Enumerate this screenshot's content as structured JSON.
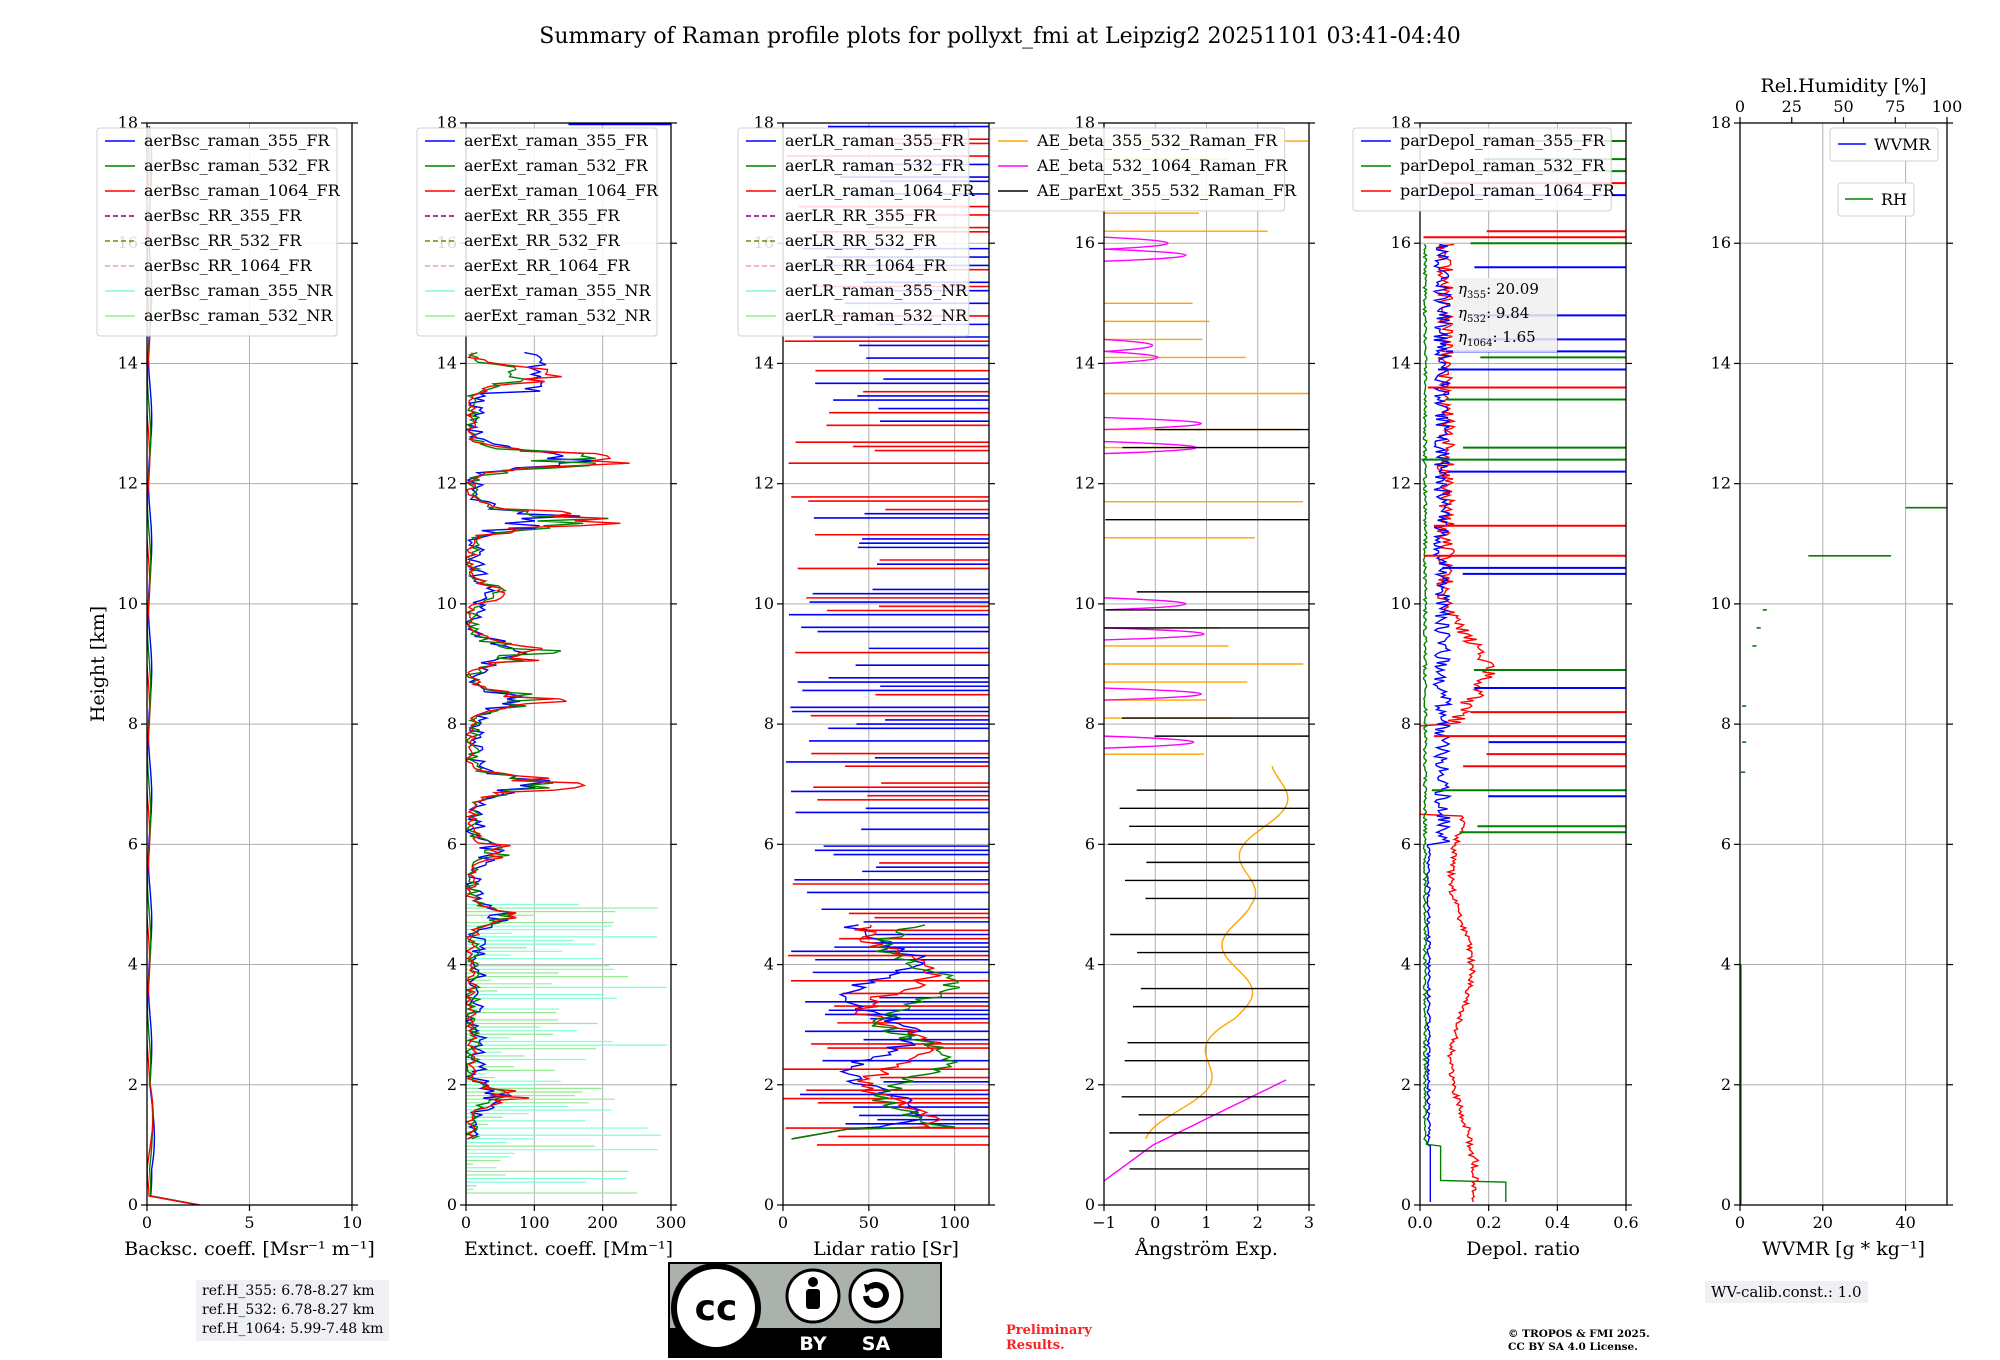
{
  "title": "Summary of Raman profile plots for pollyxt_fmi at Leipzig2 20251101 03:41-04:40",
  "colors": {
    "blue": "#0000ff",
    "green": "#008000",
    "red": "#ff0000",
    "purple": "#800080",
    "olive": "#808000",
    "salmon": "#f4a3a3",
    "cyan": "#7fffd4",
    "lightgreen": "#90ee90",
    "orange": "#ffa500",
    "magenta": "#ff00ff",
    "black": "#000000"
  },
  "chart_data": [
    {
      "type": "line",
      "name": "backscatter",
      "xlabel": "Backsc. coeff. [Msr⁻¹ m⁻¹]",
      "ylabel": "Height [km]",
      "xlim": [
        0,
        10
      ],
      "ylim": [
        0,
        18
      ],
      "xticks": [
        "0",
        "5",
        "10"
      ],
      "yticks": [
        "0",
        "2",
        "4",
        "6",
        "8",
        "10",
        "12",
        "14",
        "16",
        "18"
      ],
      "legend": [
        "aerBsc_raman_355_FR",
        "aerBsc_raman_532_FR",
        "aerBsc_raman_1064_FR",
        "aerBsc_RR_355_FR",
        "aerBsc_RR_532_FR",
        "aerBsc_RR_1064_FR",
        "aerBsc_raman_355_NR",
        "aerBsc_raman_532_NR"
      ],
      "legend_position": "top-left"
    },
    {
      "type": "line",
      "name": "extinction",
      "xlabel": "Extinct. coeff. [Mm⁻¹]",
      "xlim": [
        0,
        300
      ],
      "ylim": [
        0,
        18
      ],
      "xticks": [
        "0",
        "100",
        "200",
        "300"
      ],
      "legend": [
        "aerExt_raman_355_FR",
        "aerExt_raman_532_FR",
        "aerExt_raman_1064_FR",
        "aerExt_RR_355_FR",
        "aerExt_RR_532_FR",
        "aerExt_RR_1064_FR",
        "aerExt_raman_355_NR",
        "aerExt_raman_532_NR"
      ],
      "legend_position": "top-left"
    },
    {
      "type": "line",
      "name": "lidar_ratio",
      "xlabel": "Lidar ratio [Sr]",
      "xlim": [
        0,
        120
      ],
      "ylim": [
        0,
        18
      ],
      "xticks": [
        "0",
        "50",
        "100"
      ],
      "legend": [
        "aerLR_raman_355_FR",
        "aerLR_raman_532_FR",
        "aerLR_raman_1064_FR",
        "aerLR_RR_355_FR",
        "aerLR_RR_532_FR",
        "aerLR_RR_1064_FR",
        "aerLR_raman_355_NR",
        "aerLR_raman_532_NR"
      ],
      "legend_position": "top-left"
    },
    {
      "type": "line",
      "name": "angstrom",
      "xlabel": "Ångström Exp.",
      "xlim": [
        -1,
        3
      ],
      "ylim": [
        0,
        18
      ],
      "xticks": [
        "−1",
        "0",
        "1",
        "2",
        "3"
      ],
      "legend": [
        "AE_beta_355_532_Raman_FR",
        "AE_beta_532_1064_Raman_FR",
        "AE_parExt_355_532_Raman_FR"
      ],
      "legend_position": "top-right"
    },
    {
      "type": "line",
      "name": "depol",
      "xlabel": "Depol. ratio",
      "xlim": [
        0,
        0.6
      ],
      "ylim": [
        0,
        18
      ],
      "xticks": [
        "0.0",
        "0.2",
        "0.4",
        "0.6"
      ],
      "legend": [
        "parDepol_raman_355_FR",
        "parDepol_raman_532_FR",
        "parDepol_raman_1064_FR"
      ],
      "legend_position": "top-left",
      "annotations": [
        {
          "sym": "η",
          "sub": "355",
          "value": "20.09"
        },
        {
          "sym": "η",
          "sub": "532",
          "value": "9.84"
        },
        {
          "sym": "η",
          "sub": "1064",
          "value": "1.65"
        }
      ]
    },
    {
      "type": "line",
      "name": "wvmr",
      "xlabel": "WVMR [g * kg⁻¹]",
      "x2label": "Rel.Humidity [%]",
      "xlim": [
        0,
        50
      ],
      "x2lim": [
        0,
        100
      ],
      "ylim": [
        0,
        18
      ],
      "xticks": [
        "0",
        "20",
        "40"
      ],
      "x2ticks": [
        "0",
        "25",
        "50",
        "75",
        "100"
      ],
      "legend": [
        "WVMR",
        "RH"
      ],
      "legend_position": "top-right"
    }
  ],
  "info": {
    "refH": [
      "ref.H_355: 6.78-8.27 km",
      "ref.H_532: 6.78-8.27 km",
      "ref.H_1064: 5.99-7.48 km"
    ],
    "preliminary": [
      "Preliminary",
      "Results."
    ],
    "copyright": [
      "© TROPOS & FMI 2025.",
      "CC BY SA 4.0 License."
    ],
    "wv_calib": "WV-calib.const.: 1.0",
    "license_badge": [
      "BY",
      "SA"
    ]
  }
}
